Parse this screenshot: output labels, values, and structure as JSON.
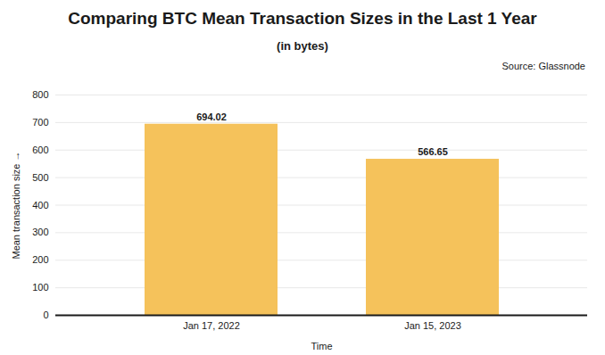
{
  "chart_data": {
    "type": "bar",
    "title": "Comparing BTC Mean Transaction Sizes in the Last 1 Year",
    "subtitle": "(in bytes)",
    "source": "Source: Glassnode",
    "x_label": "Time",
    "y_label": "Mean transaction size",
    "categories": [
      "Jan 17, 2022",
      "Jan 15, 2023"
    ],
    "values": [
      694.02,
      566.65
    ],
    "color": "#f5c25b",
    "ylim": [
      0,
      800
    ],
    "yticks": [
      0,
      100,
      200,
      300,
      400,
      500,
      600,
      700,
      800
    ],
    "grid": true,
    "data_labels": true
  }
}
